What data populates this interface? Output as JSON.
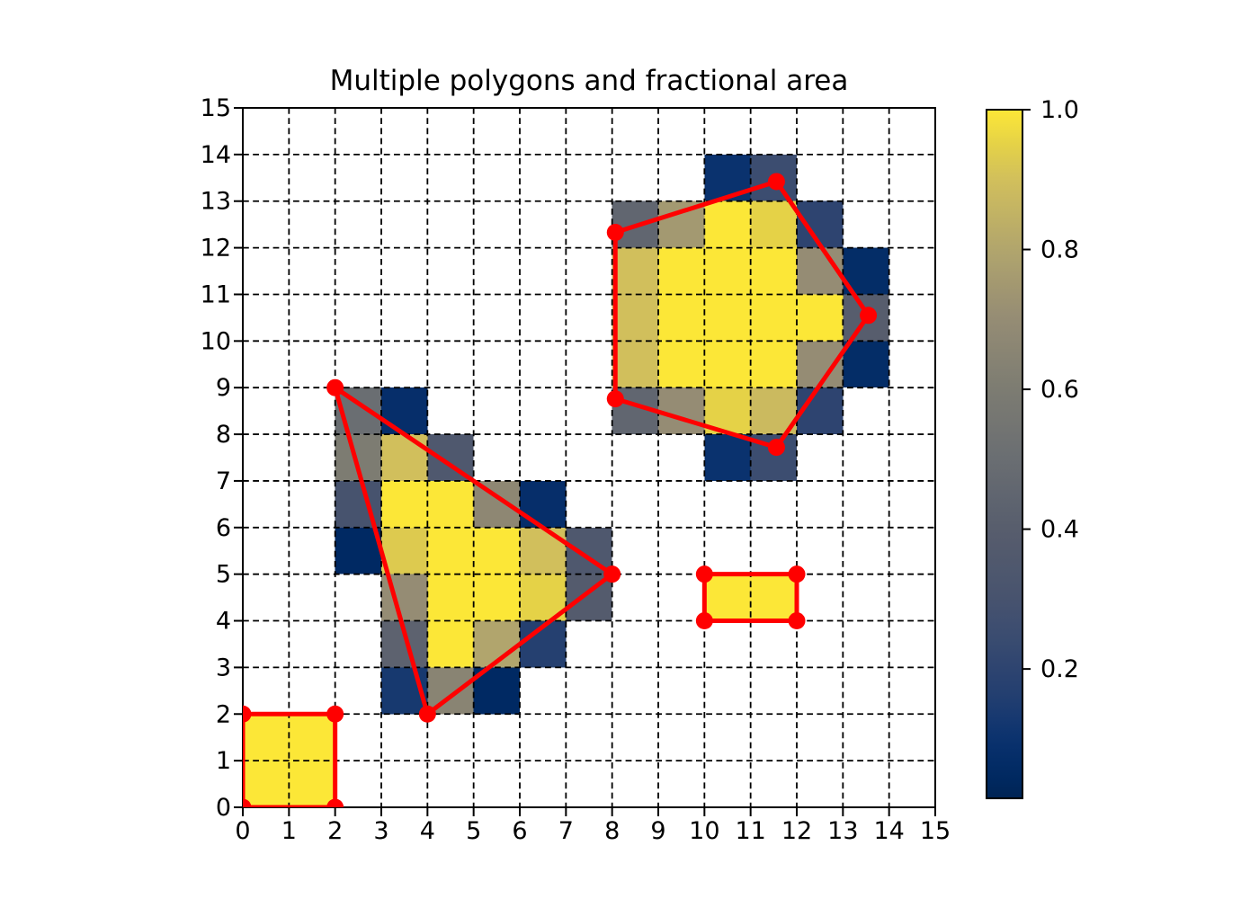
{
  "chart_data": {
    "type": "heatmap",
    "title": "Multiple polygons and fractional area",
    "xlabel": "",
    "ylabel": "",
    "xlim": [
      0,
      15
    ],
    "ylim": [
      0,
      15
    ],
    "x_tick_labels": [
      "0",
      "1",
      "2",
      "3",
      "4",
      "5",
      "6",
      "7",
      "8",
      "9",
      "10",
      "11",
      "12",
      "13",
      "14",
      "15"
    ],
    "y_tick_labels": [
      "0",
      "1",
      "2",
      "3",
      "4",
      "5",
      "6",
      "7",
      "8",
      "9",
      "10",
      "11",
      "12",
      "13",
      "14",
      "15"
    ],
    "grid": {
      "style": "dashed",
      "color": "#000000"
    },
    "colormap": {
      "name": "cividis",
      "stops": [
        [
          0.0,
          "#00224e"
        ],
        [
          0.05,
          "#002963"
        ],
        [
          0.1,
          "#0a326e"
        ],
        [
          0.15,
          "#1f3d70"
        ],
        [
          0.2,
          "#2e4470"
        ],
        [
          0.25,
          "#3c4d70"
        ],
        [
          0.3,
          "#47536e"
        ],
        [
          0.4,
          "#575d6d"
        ],
        [
          0.5,
          "#6a6e72"
        ],
        [
          0.6,
          "#7d7c72"
        ],
        [
          0.7,
          "#958c74"
        ],
        [
          0.8,
          "#b1a56d"
        ],
        [
          0.9,
          "#d1bf5c"
        ],
        [
          0.95,
          "#e5d247"
        ],
        [
          1.0,
          "#fce737"
        ]
      ]
    },
    "colorbar": {
      "vmin": 0.015,
      "vmax": 1.0,
      "tick_values": [
        1.0,
        0.8,
        0.6,
        0.4,
        0.2
      ],
      "tick_labels": [
        "1.0",
        "0.8",
        "0.6",
        "0.4",
        "0.2"
      ]
    },
    "cells": [
      [
        0,
        0,
        1.0
      ],
      [
        1,
        0,
        1.0
      ],
      [
        0,
        1,
        1.0
      ],
      [
        1,
        1,
        1.0
      ],
      [
        3,
        2,
        0.13
      ],
      [
        4,
        2,
        0.65
      ],
      [
        5,
        2,
        0.05
      ],
      [
        3,
        3,
        0.43
      ],
      [
        4,
        3,
        1.0
      ],
      [
        5,
        3,
        0.8
      ],
      [
        6,
        3,
        0.17
      ],
      [
        3,
        4,
        0.7
      ],
      [
        4,
        4,
        1.0
      ],
      [
        5,
        4,
        1.0
      ],
      [
        6,
        4,
        0.95
      ],
      [
        7,
        4,
        0.38
      ],
      [
        10,
        4,
        1.0
      ],
      [
        11,
        4,
        1.0
      ],
      [
        2,
        5,
        0.05
      ],
      [
        3,
        5,
        0.93
      ],
      [
        4,
        5,
        1.0
      ],
      [
        5,
        5,
        1.0
      ],
      [
        6,
        5,
        0.9
      ],
      [
        7,
        5,
        0.35
      ],
      [
        2,
        6,
        0.3
      ],
      [
        3,
        6,
        1.0
      ],
      [
        4,
        6,
        1.0
      ],
      [
        5,
        6,
        0.67
      ],
      [
        6,
        6,
        0.08
      ],
      [
        2,
        7,
        0.6
      ],
      [
        3,
        7,
        0.9
      ],
      [
        4,
        7,
        0.35
      ],
      [
        10,
        7,
        0.1
      ],
      [
        11,
        7,
        0.25
      ],
      [
        2,
        8,
        0.5
      ],
      [
        3,
        8,
        0.08
      ],
      [
        8,
        8,
        0.45
      ],
      [
        9,
        8,
        0.7
      ],
      [
        10,
        8,
        0.95
      ],
      [
        11,
        8,
        0.88
      ],
      [
        12,
        8,
        0.2
      ],
      [
        8,
        9,
        0.9
      ],
      [
        9,
        9,
        1.0
      ],
      [
        10,
        9,
        1.0
      ],
      [
        11,
        9,
        1.0
      ],
      [
        12,
        9,
        0.7
      ],
      [
        13,
        9,
        0.07
      ],
      [
        8,
        10,
        0.9
      ],
      [
        9,
        10,
        1.0
      ],
      [
        10,
        10,
        1.0
      ],
      [
        11,
        10,
        1.0
      ],
      [
        12,
        10,
        1.0
      ],
      [
        13,
        10,
        0.4
      ],
      [
        8,
        11,
        0.9
      ],
      [
        9,
        11,
        1.0
      ],
      [
        10,
        11,
        1.0
      ],
      [
        11,
        11,
        1.0
      ],
      [
        12,
        11,
        0.7
      ],
      [
        13,
        11,
        0.07
      ],
      [
        8,
        12,
        0.45
      ],
      [
        9,
        12,
        0.75
      ],
      [
        10,
        12,
        1.0
      ],
      [
        11,
        12,
        0.95
      ],
      [
        12,
        12,
        0.2
      ],
      [
        10,
        13,
        0.1
      ],
      [
        11,
        13,
        0.25
      ]
    ],
    "polygons": [
      {
        "name": "square",
        "color": "#ff0000",
        "vertices": [
          [
            0,
            0
          ],
          [
            2,
            0
          ],
          [
            2,
            2
          ],
          [
            0,
            2
          ]
        ]
      },
      {
        "name": "triangle",
        "color": "#ff0000",
        "vertices": [
          [
            2,
            9
          ],
          [
            8,
            5
          ],
          [
            4,
            2
          ]
        ]
      },
      {
        "name": "pentagon",
        "color": "#ff0000",
        "vertices": [
          [
            8.07,
            12.33
          ],
          [
            11.56,
            13.42
          ],
          [
            13.55,
            10.55
          ],
          [
            11.56,
            7.72
          ],
          [
            8.07,
            8.76
          ]
        ]
      },
      {
        "name": "rectangle",
        "color": "#ff0000",
        "vertices": [
          [
            10,
            4
          ],
          [
            12,
            4
          ],
          [
            12,
            5
          ],
          [
            10,
            5
          ]
        ]
      }
    ],
    "style": {
      "polygon_line_color": "#ff0000",
      "polygon_line_width": 5,
      "vertex_marker_radius": 9.5,
      "axis_color": "#000000",
      "background": "#ffffff"
    }
  }
}
